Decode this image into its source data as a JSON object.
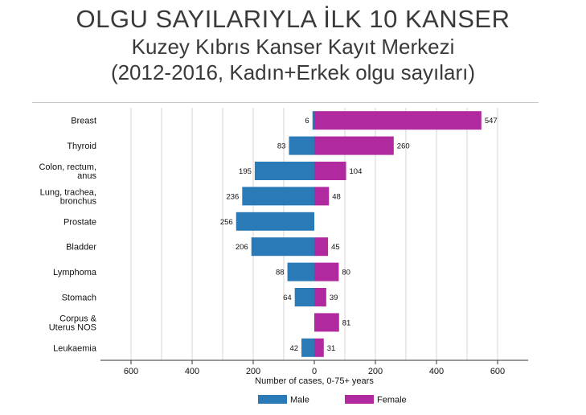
{
  "header": {
    "title": "OLGU SAYILARIYLA İLK 10 KANSER",
    "subtitle1": "Kuzey Kıbrıs Kanser Kayıt Merkezi",
    "subtitle2": "(2012-2016, Kadın+Erkek olgu sayıları)"
  },
  "chart_data": {
    "type": "bar",
    "orientation": "horizontal-butterfly",
    "categories": [
      [
        "Breast"
      ],
      [
        "Thyroid"
      ],
      [
        "Colon, rectum,",
        "anus"
      ],
      [
        "Lung, trachea,",
        "bronchus"
      ],
      [
        "Prostate"
      ],
      [
        "Bladder"
      ],
      [
        "Lymphoma"
      ],
      [
        "Stomach"
      ],
      [
        "Corpus &",
        "Uterus NOS"
      ],
      [
        "Leukaemia"
      ]
    ],
    "series": [
      {
        "name": "Male",
        "color": "#2a7ab8",
        "direction": "left",
        "values": [
          6,
          83,
          195,
          236,
          256,
          206,
          88,
          64,
          null,
          42
        ]
      },
      {
        "name": "Female",
        "color": "#b0299f",
        "direction": "right",
        "values": [
          547,
          260,
          104,
          48,
          null,
          45,
          80,
          39,
          81,
          31
        ]
      }
    ],
    "xlim": [
      -700,
      700
    ],
    "x_ticks": [
      -600,
      -400,
      -200,
      0,
      200,
      400,
      600
    ],
    "x_tick_labels": [
      "600",
      "400",
      "200",
      "0",
      "200",
      "400",
      "600"
    ],
    "xlabel": "Number of cases, 0-75+ years",
    "ylabel": "",
    "grid": true,
    "legend_position": "bottom"
  }
}
